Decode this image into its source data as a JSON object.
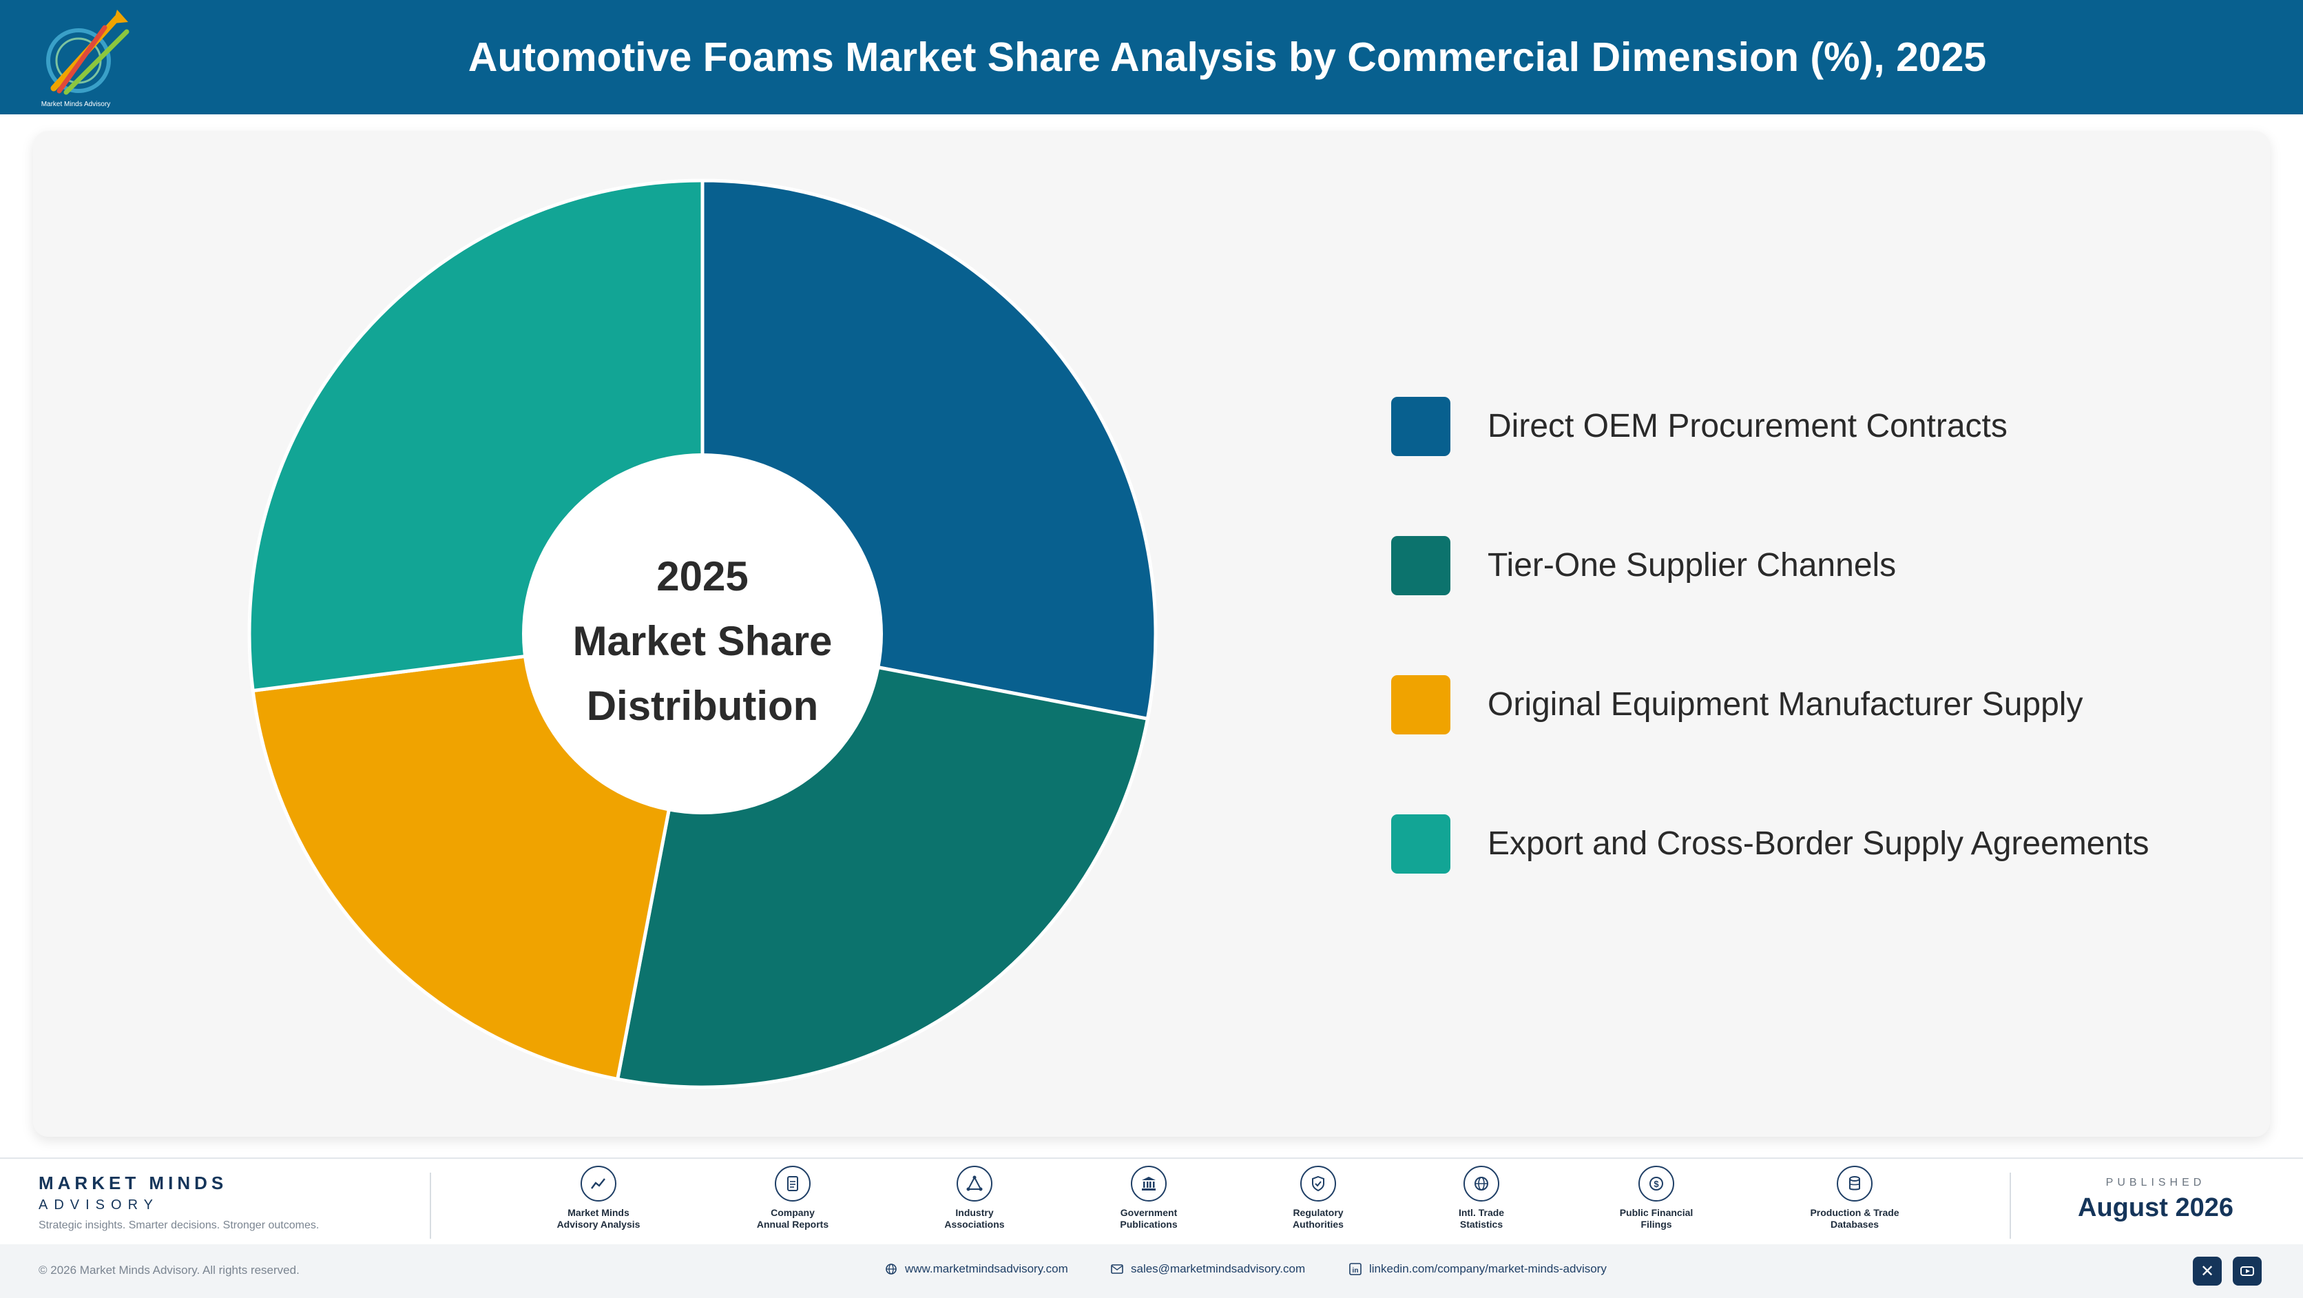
{
  "header": {
    "title": "Automotive Foams Market Share Analysis by Commercial Dimension (%), 2025"
  },
  "logo": {
    "caption": "Market Minds Advisory"
  },
  "chart_data": {
    "type": "pie",
    "variant": "donut",
    "center_text": {
      "year": "2025",
      "line1": "Market Share",
      "line2": "Distribution"
    },
    "categories": [
      "Direct OEM Procurement Contracts",
      "Tier-One Supplier Channels",
      "Original Equipment Manufacturer Supply",
      "Export and Cross-Border Supply Agreements"
    ],
    "values": [
      28,
      25,
      20,
      27
    ],
    "colors": [
      "#08608f",
      "#0c736d",
      "#f0a300",
      "#12a595"
    ],
    "legend_position": "right"
  },
  "legend": [
    {
      "label": "Direct OEM Procurement Contracts",
      "color": "#08608f"
    },
    {
      "label": "Tier-One Supplier Channels",
      "color": "#0c736d"
    },
    {
      "label": "Original Equipment Manufacturer Supply",
      "color": "#f0a300"
    },
    {
      "label": "Export and Cross-Border Supply Agreements",
      "color": "#12a595"
    }
  ],
  "footer": {
    "brand": {
      "name": "MARKET MINDS",
      "sub": "ADVISORY",
      "tagline": "Strategic insights. Smarter decisions. Stronger outcomes."
    },
    "sources": [
      {
        "label": "Market Minds\nAdvisory Analysis",
        "icon": "trend-chart-icon"
      },
      {
        "label": "Company\nAnnual Reports",
        "icon": "document-icon"
      },
      {
        "label": "Industry\nAssociations",
        "icon": "network-icon"
      },
      {
        "label": "Government\nPublications",
        "icon": "government-building-icon"
      },
      {
        "label": "Regulatory\nAuthorities",
        "icon": "shield-check-icon"
      },
      {
        "label": "Intl. Trade\nStatistics",
        "icon": "globe-icon"
      },
      {
        "label": "Public Financial\nFilings",
        "icon": "dollar-coin-icon"
      },
      {
        "label": "Production & Trade\nDatabases",
        "icon": "database-icon"
      }
    ],
    "published_label": "PUBLISHED",
    "published_date": "August 2026",
    "copyright": "© 2026 Market Minds Advisory. All rights reserved.",
    "website": "www.marketmindsadvisory.com",
    "email": "sales@marketmindsadvisory.com",
    "linkedin": "linkedin.com/company/market-minds-advisory"
  }
}
